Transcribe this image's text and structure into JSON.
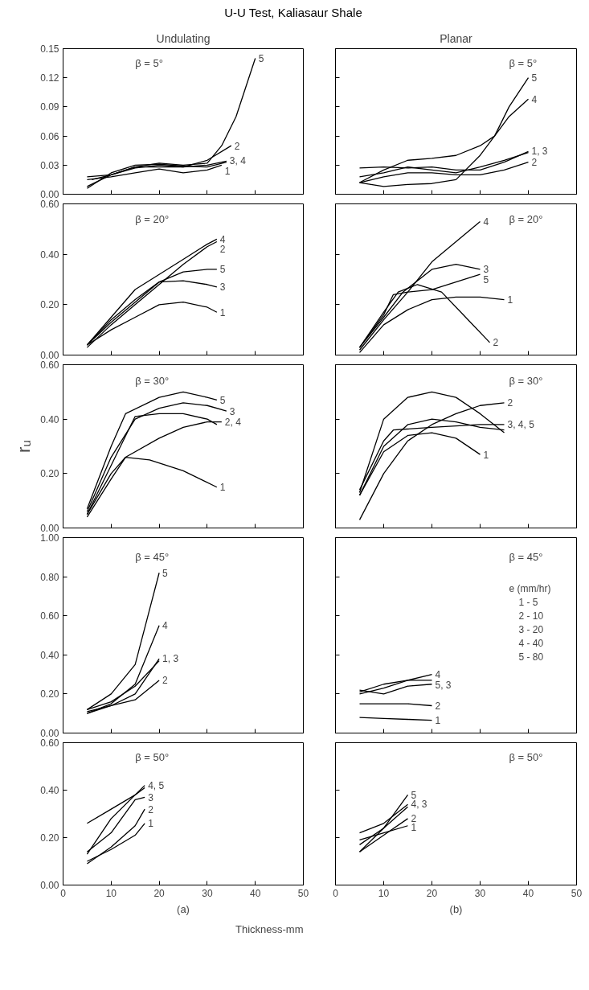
{
  "chart_data": [
    {
      "type": "line",
      "title": "U-U Test, Kaliasaur Shale",
      "subtitle": "Undulating",
      "xlim": [
        0,
        50
      ],
      "ylim": [
        0,
        0.15
      ],
      "xticks": [
        0,
        10,
        20,
        30,
        40,
        50
      ],
      "yticks": [
        {
          "value": 0,
          "label": "0.00"
        },
        {
          "value": 0.03,
          "label": "0.03"
        },
        {
          "value": 0.06,
          "label": "0.06"
        },
        {
          "value": 0.09,
          "label": "0.09"
        },
        {
          "value": 0.12,
          "label": "0.12"
        },
        {
          "value": 0.15,
          "label": "0.15"
        }
      ],
      "tick_labels": "y",
      "grid": false,
      "marker": "none",
      "line_style": "solid",
      "series": [
        {
          "color": "#000000",
          "x": [
            5,
            10,
            15,
            20,
            25,
            30,
            33,
            36,
            38,
            40
          ],
          "values": [
            0.008,
            0.02,
            0.028,
            0.032,
            0.03,
            0.032,
            0.05,
            0.08,
            0.11,
            0.14
          ]
        },
        {
          "color": "#000000",
          "x": [
            6,
            10,
            15,
            20,
            25,
            30,
            35
          ],
          "values": [
            0.015,
            0.02,
            0.027,
            0.03,
            0.028,
            0.035,
            0.05
          ]
        },
        {
          "color": "#000000",
          "x": [
            5,
            10,
            15,
            20,
            25,
            30,
            34
          ],
          "values": [
            0.018,
            0.02,
            0.028,
            0.028,
            0.028,
            0.03,
            0.034
          ]
        },
        {
          "color": "#000000",
          "x": [
            5,
            10,
            15,
            20,
            25,
            30,
            34
          ],
          "values": [
            0.006,
            0.022,
            0.03,
            0.031,
            0.029,
            0.028,
            0.033
          ]
        },
        {
          "color": "#000000",
          "x": [
            5,
            10,
            15,
            20,
            25,
            30,
            33
          ],
          "values": [
            0.015,
            0.018,
            0.022,
            0.026,
            0.022,
            0.025,
            0.03
          ]
        }
      ],
      "annotations": [
        "β = 5°",
        {
          "text": "5",
          "x": 40,
          "y": 0.14
        },
        {
          "text": "2",
          "x": 35,
          "y": 0.05
        },
        {
          "text": "3, 4",
          "x": 34,
          "y": 0.034
        },
        {
          "text": "1",
          "x": 33,
          "y": 0.03
        }
      ]
    },
    {
      "type": "line",
      "subtitle": "Planar",
      "xlim": [
        0,
        50
      ],
      "ylim": [
        0,
        0.15
      ],
      "xticks": [
        0,
        10,
        20,
        30,
        40,
        50
      ],
      "yticks": [
        0,
        0.03,
        0.06,
        0.09,
        0.12,
        0.15
      ],
      "tick_labels": false,
      "grid": false,
      "marker": "none",
      "line_style": "solid",
      "series": [
        {
          "color": "#000000",
          "x": [
            5,
            10,
            15,
            20,
            25,
            30,
            33,
            36,
            40
          ],
          "values": [
            0.012,
            0.008,
            0.01,
            0.011,
            0.015,
            0.04,
            0.06,
            0.09,
            0.12
          ]
        },
        {
          "color": "#000000",
          "x": [
            5,
            10,
            15,
            20,
            25,
            30,
            33,
            36,
            40
          ],
          "values": [
            0.012,
            0.025,
            0.035,
            0.037,
            0.04,
            0.05,
            0.06,
            0.08,
            0.098
          ]
        },
        {
          "color": "#000000",
          "x": [
            5,
            10,
            15,
            20,
            25,
            30,
            35,
            40
          ],
          "values": [
            0.018,
            0.022,
            0.028,
            0.025,
            0.022,
            0.028,
            0.035,
            0.043
          ]
        },
        {
          "color": "#000000",
          "x": [
            5,
            10,
            15,
            20,
            25,
            30,
            35,
            40
          ],
          "values": [
            0.027,
            0.028,
            0.027,
            0.028,
            0.025,
            0.025,
            0.033,
            0.044
          ]
        },
        {
          "color": "#000000",
          "x": [
            5,
            10,
            15,
            20,
            25,
            30,
            35,
            40
          ],
          "values": [
            0.012,
            0.018,
            0.022,
            0.022,
            0.02,
            0.02,
            0.025,
            0.033
          ]
        }
      ],
      "annotations": [
        "β = 5°",
        {
          "text": "5",
          "x": 40,
          "y": 0.12
        },
        {
          "text": "4",
          "x": 40,
          "y": 0.098
        },
        {
          "text": "1, 3",
          "x": 40,
          "y": 0.044
        },
        {
          "text": "2",
          "x": 40,
          "y": 0.033
        }
      ]
    },
    {
      "type": "line",
      "xlim": [
        0,
        50
      ],
      "ylim": [
        0,
        0.6
      ],
      "xticks": [
        0,
        10,
        20,
        30,
        40,
        50
      ],
      "yticks": [
        {
          "value": 0,
          "label": "0.00"
        },
        {
          "value": 0.2,
          "label": "0.20"
        },
        {
          "value": 0.4,
          "label": "0.40"
        },
        {
          "value": 0.6,
          "label": "0.60"
        }
      ],
      "tick_labels": "y",
      "grid": false,
      "marker": "none",
      "line_style": "solid",
      "series": [
        {
          "color": "#000000",
          "x": [
            5,
            10,
            15,
            20,
            25,
            30,
            32
          ],
          "values": [
            0.04,
            0.15,
            0.26,
            0.32,
            0.38,
            0.44,
            0.46
          ]
        },
        {
          "color": "#000000",
          "x": [
            5,
            10,
            15,
            20,
            25,
            30,
            32
          ],
          "values": [
            0.03,
            0.12,
            0.2,
            0.28,
            0.36,
            0.43,
            0.45
          ]
        },
        {
          "color": "#000000",
          "x": [
            5,
            10,
            15,
            20,
            25,
            30,
            32
          ],
          "values": [
            0.04,
            0.13,
            0.21,
            0.29,
            0.33,
            0.34,
            0.34
          ]
        },
        {
          "color": "#000000",
          "x": [
            5,
            10,
            15,
            20,
            25,
            30,
            32
          ],
          "values": [
            0.04,
            0.14,
            0.22,
            0.29,
            0.295,
            0.28,
            0.27
          ]
        },
        {
          "color": "#000000",
          "x": [
            5,
            10,
            15,
            20,
            25,
            30,
            32
          ],
          "values": [
            0.04,
            0.1,
            0.15,
            0.2,
            0.21,
            0.19,
            0.17
          ]
        }
      ],
      "annotations": [
        "β = 20°",
        {
          "text": "4",
          "x": 32,
          "y": 0.46
        },
        {
          "text": "2",
          "x": 32,
          "y": 0.45
        },
        {
          "text": "5",
          "x": 32,
          "y": 0.34
        },
        {
          "text": "3",
          "x": 32,
          "y": 0.27
        },
        {
          "text": "1",
          "x": 32,
          "y": 0.17
        }
      ]
    },
    {
      "type": "line",
      "xlim": [
        0,
        50
      ],
      "ylim": [
        0,
        0.6
      ],
      "xticks": [
        0,
        10,
        20,
        30,
        40,
        50
      ],
      "yticks": [
        0,
        0.2,
        0.4,
        0.6
      ],
      "tick_labels": false,
      "grid": false,
      "marker": "none",
      "line_style": "solid",
      "series": [
        {
          "color": "#000000",
          "x": [
            5,
            10,
            15,
            20,
            25,
            30
          ],
          "values": [
            0.02,
            0.14,
            0.25,
            0.37,
            0.45,
            0.53
          ]
        },
        {
          "color": "#000000",
          "x": [
            5,
            10,
            14,
            20,
            25,
            30
          ],
          "values": [
            0.03,
            0.15,
            0.25,
            0.34,
            0.36,
            0.34
          ]
        },
        {
          "color": "#000000",
          "x": [
            5,
            10,
            12,
            15,
            20,
            25,
            30
          ],
          "values": [
            0.03,
            0.16,
            0.24,
            0.25,
            0.26,
            0.29,
            0.32
          ]
        },
        {
          "color": "#000000",
          "x": [
            5,
            10,
            13,
            17,
            22,
            27,
            32
          ],
          "values": [
            0.03,
            0.17,
            0.25,
            0.28,
            0.25,
            0.15,
            0.05
          ]
        },
        {
          "color": "#000000",
          "x": [
            5,
            10,
            15,
            20,
            25,
            30,
            35
          ],
          "values": [
            0.01,
            0.12,
            0.18,
            0.22,
            0.23,
            0.23,
            0.22
          ]
        }
      ],
      "annotations": [
        "β = 20°",
        {
          "text": "4",
          "x": 30,
          "y": 0.53
        },
        {
          "text": "3",
          "x": 30,
          "y": 0.34
        },
        {
          "text": "5",
          "x": 30,
          "y": 0.32
        },
        {
          "text": "2",
          "x": 32,
          "y": 0.05
        },
        {
          "text": "1",
          "x": 35,
          "y": 0.22
        }
      ]
    },
    {
      "type": "line",
      "ylabel": "rᵤ",
      "xlim": [
        0,
        50
      ],
      "ylim": [
        0,
        0.6
      ],
      "xticks": [
        0,
        10,
        20,
        30,
        40,
        50
      ],
      "yticks": [
        {
          "value": 0,
          "label": "0.00"
        },
        {
          "value": 0.2,
          "label": "0.20"
        },
        {
          "value": 0.4,
          "label": "0.40"
        },
        {
          "value": 0.6,
          "label": "0.60"
        }
      ],
      "tick_labels": "y",
      "grid": false,
      "marker": "none",
      "line_style": "solid",
      "series": [
        {
          "color": "#000000",
          "x": [
            5,
            10,
            13,
            20,
            25,
            30,
            32
          ],
          "values": [
            0.07,
            0.3,
            0.42,
            0.48,
            0.5,
            0.48,
            0.47
          ]
        },
        {
          "color": "#000000",
          "x": [
            5,
            10,
            15,
            20,
            25,
            30,
            34
          ],
          "values": [
            0.06,
            0.26,
            0.4,
            0.44,
            0.46,
            0.45,
            0.43
          ]
        },
        {
          "color": "#000000",
          "x": [
            5,
            10,
            15,
            20,
            25,
            30,
            32
          ],
          "values": [
            0.05,
            0.23,
            0.41,
            0.42,
            0.42,
            0.4,
            0.38
          ]
        },
        {
          "color": "#000000",
          "x": [
            5,
            10,
            13,
            20,
            25,
            30,
            33
          ],
          "values": [
            0.04,
            0.18,
            0.26,
            0.33,
            0.37,
            0.39,
            0.39
          ]
        },
        {
          "color": "#000000",
          "x": [
            5,
            10,
            13,
            18,
            25,
            32
          ],
          "values": [
            0.05,
            0.2,
            0.26,
            0.25,
            0.21,
            0.15
          ]
        }
      ],
      "annotations": [
        "β = 30°",
        {
          "text": "5",
          "x": 32,
          "y": 0.47
        },
        {
          "text": "3",
          "x": 34,
          "y": 0.43
        },
        {
          "text": "2, 4",
          "x": 33,
          "y": 0.39
        },
        {
          "text": "1",
          "x": 32,
          "y": 0.15
        }
      ]
    },
    {
      "type": "line",
      "xlim": [
        0,
        50
      ],
      "ylim": [
        0,
        0.6
      ],
      "xticks": [
        0,
        10,
        20,
        30,
        40,
        50
      ],
      "yticks": [
        0,
        0.2,
        0.4,
        0.6
      ],
      "tick_labels": false,
      "grid": false,
      "marker": "none",
      "line_style": "solid",
      "series": [
        {
          "color": "#000000",
          "x": [
            5,
            10,
            15,
            20,
            25,
            30
          ],
          "values": [
            0.12,
            0.28,
            0.34,
            0.35,
            0.33,
            0.27
          ]
        },
        {
          "color": "#000000",
          "x": [
            5,
            10,
            15,
            20,
            25,
            30,
            35
          ],
          "values": [
            0.03,
            0.2,
            0.32,
            0.38,
            0.42,
            0.45,
            0.46
          ]
        },
        {
          "color": "#000000",
          "x": [
            5,
            10,
            12,
            20,
            30,
            35
          ],
          "values": [
            0.14,
            0.32,
            0.36,
            0.37,
            0.38,
            0.38
          ]
        },
        {
          "color": "#000000",
          "x": [
            5,
            10,
            15,
            20,
            25,
            30,
            35
          ],
          "values": [
            0.12,
            0.3,
            0.38,
            0.4,
            0.39,
            0.37,
            0.36
          ]
        },
        {
          "color": "#000000",
          "x": [
            5,
            10,
            15,
            20,
            25,
            30,
            35
          ],
          "values": [
            0.13,
            0.4,
            0.48,
            0.5,
            0.48,
            0.42,
            0.35
          ]
        }
      ],
      "annotations": [
        "β = 30°",
        {
          "text": "2",
          "x": 35,
          "y": 0.46
        },
        {
          "text": "3, 4, 5",
          "x": 35,
          "y": 0.38
        },
        {
          "text": "1",
          "x": 30,
          "y": 0.27
        }
      ]
    },
    {
      "type": "line",
      "xlim": [
        0,
        50
      ],
      "ylim": [
        0,
        1.0
      ],
      "xticks": [
        0,
        10,
        20,
        30,
        40,
        50
      ],
      "yticks": [
        {
          "value": 0,
          "label": "0.00"
        },
        {
          "value": 0.2,
          "label": "0.20"
        },
        {
          "value": 0.4,
          "label": "0.40"
        },
        {
          "value": 0.6,
          "label": "0.60"
        },
        {
          "value": 0.8,
          "label": "0.80"
        },
        {
          "value": 1.0,
          "label": "1.00"
        }
      ],
      "tick_labels": "y",
      "grid": false,
      "marker": "none",
      "line_style": "solid",
      "series": [
        {
          "color": "#000000",
          "x": [
            5,
            10,
            15,
            20
          ],
          "values": [
            0.12,
            0.2,
            0.35,
            0.82
          ]
        },
        {
          "color": "#000000",
          "x": [
            5,
            10,
            15,
            20
          ],
          "values": [
            0.1,
            0.15,
            0.25,
            0.55
          ]
        },
        {
          "color": "#000000",
          "x": [
            5,
            10,
            15,
            20
          ],
          "values": [
            0.11,
            0.14,
            0.2,
            0.38
          ]
        },
        {
          "color": "#000000",
          "x": [
            5,
            10,
            15,
            20
          ],
          "values": [
            0.12,
            0.16,
            0.24,
            0.37
          ]
        },
        {
          "color": "#000000",
          "x": [
            5,
            10,
            15,
            20
          ],
          "values": [
            0.1,
            0.14,
            0.17,
            0.27
          ]
        }
      ],
      "annotations": [
        "β = 45°",
        {
          "text": "5",
          "x": 20,
          "y": 0.82
        },
        {
          "text": "4",
          "x": 20,
          "y": 0.55
        },
        {
          "text": "1, 3",
          "x": 20,
          "y": 0.38
        },
        {
          "text": "2",
          "x": 20,
          "y": 0.27
        }
      ]
    },
    {
      "type": "line",
      "xlim": [
        0,
        50
      ],
      "ylim": [
        0,
        1.0
      ],
      "xticks": [
        0,
        10,
        20,
        30,
        40,
        50
      ],
      "yticks": [
        0,
        0.2,
        0.4,
        0.6,
        0.8,
        1.0
      ],
      "tick_labels": false,
      "grid": false,
      "marker": "none",
      "line_style": "solid",
      "legend_title": "e (mm/hr)",
      "series": [
        {
          "color": "#000000",
          "x": [
            5,
            10,
            15,
            20
          ],
          "values": [
            0.2,
            0.23,
            0.27,
            0.3
          ]
        },
        {
          "color": "#000000",
          "x": [
            5,
            10,
            15,
            20
          ],
          "values": [
            0.21,
            0.25,
            0.27,
            0.27
          ]
        },
        {
          "color": "#000000",
          "x": [
            5,
            10,
            15,
            20
          ],
          "values": [
            0.22,
            0.2,
            0.24,
            0.25
          ]
        },
        {
          "color": "#000000",
          "x": [
            5,
            10,
            15,
            20
          ],
          "values": [
            0.15,
            0.15,
            0.15,
            0.14
          ]
        },
        {
          "color": "#000000",
          "x": [
            5,
            10,
            15,
            20
          ],
          "values": [
            0.08,
            0.075,
            0.07,
            0.065
          ]
        }
      ],
      "annotations": [
        "β = 45°",
        {
          "text": "4",
          "x": 20,
          "y": 0.3
        },
        {
          "text": "5, 3",
          "x": 20,
          "y": 0.26
        },
        {
          "text": "2",
          "x": 20,
          "y": 0.14
        },
        {
          "text": "1",
          "x": 20,
          "y": 0.065
        },
        "1 - 5",
        "2 - 10",
        "3 - 20",
        "4 - 40",
        "5 - 80"
      ]
    },
    {
      "type": "line",
      "xlabel": "(a)",
      "xlim": [
        0,
        50
      ],
      "ylim": [
        0,
        0.6
      ],
      "xticks": [
        0,
        10,
        20,
        30,
        40,
        50
      ],
      "yticks": [
        {
          "value": 0,
          "label": "0.00"
        },
        {
          "value": 0.2,
          "label": "0.20"
        },
        {
          "value": 0.4,
          "label": "0.40"
        },
        {
          "value": 0.6,
          "label": "0.60"
        }
      ],
      "grid": false,
      "marker": "none",
      "line_style": "solid",
      "series": [
        {
          "color": "#000000",
          "x": [
            5,
            10,
            15,
            17
          ],
          "values": [
            0.26,
            0.32,
            0.38,
            0.41
          ]
        },
        {
          "color": "#000000",
          "x": [
            5,
            10,
            15,
            17
          ],
          "values": [
            0.13,
            0.28,
            0.38,
            0.42
          ]
        },
        {
          "color": "#000000",
          "x": [
            5,
            10,
            15,
            17
          ],
          "values": [
            0.14,
            0.22,
            0.36,
            0.37
          ]
        },
        {
          "color": "#000000",
          "x": [
            5,
            10,
            15,
            17
          ],
          "values": [
            0.09,
            0.16,
            0.25,
            0.32
          ]
        },
        {
          "color": "#000000",
          "x": [
            5,
            10,
            15,
            17
          ],
          "values": [
            0.1,
            0.15,
            0.21,
            0.26
          ]
        }
      ],
      "annotations": [
        "β = 50°",
        {
          "text": "4, 5",
          "x": 17,
          "y": 0.42
        },
        {
          "text": "3",
          "x": 17,
          "y": 0.37
        },
        {
          "text": "2",
          "x": 17,
          "y": 0.32
        },
        {
          "text": "1",
          "x": 17,
          "y": 0.26
        },
        "Thickness-mm"
      ]
    },
    {
      "type": "line",
      "xlabel": "(b)",
      "xlim": [
        0,
        50
      ],
      "ylim": [
        0,
        0.6
      ],
      "xticks": [
        0,
        10,
        20,
        30,
        40,
        50
      ],
      "yticks": [
        0,
        0.2,
        0.4,
        0.6
      ],
      "tick_labels": "x",
      "grid": false,
      "marker": "none",
      "line_style": "solid",
      "series": [
        {
          "color": "#000000",
          "x": [
            5,
            10,
            15
          ],
          "values": [
            0.14,
            0.24,
            0.38
          ]
        },
        {
          "color": "#000000",
          "x": [
            5,
            10,
            15
          ],
          "values": [
            0.17,
            0.24,
            0.33
          ]
        },
        {
          "color": "#000000",
          "x": [
            5,
            10,
            15
          ],
          "values": [
            0.22,
            0.26,
            0.34
          ]
        },
        {
          "color": "#000000",
          "x": [
            5,
            10,
            15
          ],
          "values": [
            0.14,
            0.21,
            0.28
          ]
        },
        {
          "color": "#000000",
          "x": [
            5,
            10,
            15
          ],
          "values": [
            0.19,
            0.22,
            0.25
          ]
        }
      ],
      "annotations": [
        "β = 50°",
        {
          "text": "5",
          "x": 15,
          "y": 0.38
        },
        {
          "text": "4, 3",
          "x": 15,
          "y": 0.34
        },
        {
          "text": "2",
          "x": 15,
          "y": 0.28
        },
        {
          "text": "1",
          "x": 15,
          "y": 0.25
        }
      ]
    }
  ]
}
